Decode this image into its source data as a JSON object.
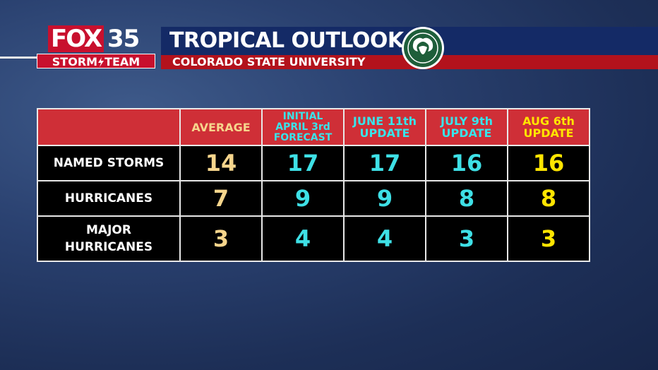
{
  "logo": {
    "brand": "FOX",
    "channel": "35",
    "team_left": "STORM",
    "team_right": "TEAM"
  },
  "header": {
    "title": "TROPICAL OUTLOOK",
    "subtitle": "COLORADO STATE UNIVERSITY"
  },
  "table": {
    "columns": [
      {
        "lines": [
          "AVERAGE"
        ]
      },
      {
        "lines": [
          "INITIAL",
          "APRIL 3rd",
          "FORECAST"
        ]
      },
      {
        "lines": [
          "JUNE 11th",
          "UPDATE"
        ]
      },
      {
        "lines": [
          "JULY 9th",
          "UPDATE"
        ]
      },
      {
        "lines": [
          "AUG 6th",
          "UPDATE"
        ]
      }
    ],
    "rows": [
      {
        "lines": [
          "NAMED STORMS"
        ],
        "values": [
          "14",
          "17",
          "17",
          "16",
          "16"
        ]
      },
      {
        "lines": [
          "HURRICANES"
        ],
        "values": [
          "7",
          "9",
          "9",
          "8",
          "8"
        ]
      },
      {
        "lines": [
          "MAJOR",
          "HURRICANES"
        ],
        "values": [
          "3",
          "4",
          "4",
          "3",
          "3"
        ]
      }
    ]
  }
}
